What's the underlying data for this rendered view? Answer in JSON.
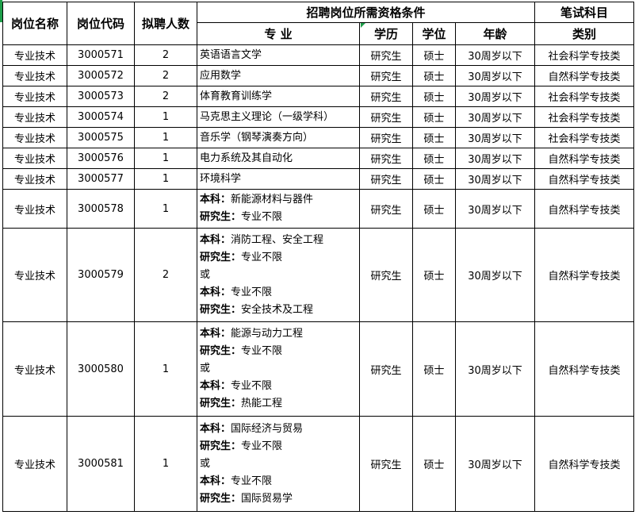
{
  "header": {
    "col_name": "岗位名称",
    "col_code": "岗位代码",
    "col_count": "拟聘人数",
    "group_conditions": "招聘岗位所需资格条件",
    "col_major": "专 业",
    "col_education": "学历",
    "col_degree": "学位",
    "col_age": "年龄",
    "group_exam": "笔试科目",
    "col_category": "类别"
  },
  "rows": [
    {
      "name": "专业技术",
      "code": "3000571",
      "count": "2",
      "major": [
        {
          "label": "",
          "text": "英语语言文学"
        }
      ],
      "education": "研究生",
      "degree": "硕士",
      "age": "30周岁以下",
      "category": "社会科学专技类"
    },
    {
      "name": "专业技术",
      "code": "3000572",
      "count": "2",
      "major": [
        {
          "label": "",
          "text": "应用数学"
        }
      ],
      "education": "研究生",
      "degree": "硕士",
      "age": "30周岁以下",
      "category": "自然科学专技类"
    },
    {
      "name": "专业技术",
      "code": "3000573",
      "count": "2",
      "major": [
        {
          "label": "",
          "text": "体育教育训练学"
        }
      ],
      "education": "研究生",
      "degree": "硕士",
      "age": "30周岁以下",
      "category": "社会科学专技类"
    },
    {
      "name": "专业技术",
      "code": "3000574",
      "count": "1",
      "major": [
        {
          "label": "",
          "text": "马克思主义理论（一级学科）"
        }
      ],
      "education": "研究生",
      "degree": "硕士",
      "age": "30周岁以下",
      "category": "社会科学专技类"
    },
    {
      "name": "专业技术",
      "code": "3000575",
      "count": "1",
      "major": [
        {
          "label": "",
          "text": "音乐学（钢琴演奏方向）"
        }
      ],
      "education": "研究生",
      "degree": "硕士",
      "age": "30周岁以下",
      "category": "社会科学专技类"
    },
    {
      "name": "专业技术",
      "code": "3000576",
      "count": "1",
      "major": [
        {
          "label": "",
          "text": "电力系统及其自动化"
        }
      ],
      "education": "研究生",
      "degree": "硕士",
      "age": "30周岁以下",
      "category": "自然科学专技类"
    },
    {
      "name": "专业技术",
      "code": "3000577",
      "count": "1",
      "major": [
        {
          "label": "",
          "text": "环境科学"
        }
      ],
      "education": "研究生",
      "degree": "硕士",
      "age": "30周岁以下",
      "category": "自然科学专技类"
    },
    {
      "name": "专业技术",
      "code": "3000578",
      "count": "1",
      "major": [
        {
          "label": "本科：",
          "text": "新能源材料与器件"
        },
        {
          "label": "研究生：",
          "text": "专业不限"
        }
      ],
      "education": "研究生",
      "degree": "硕士",
      "age": "30周岁以下",
      "category": "自然科学专技类"
    },
    {
      "name": "专业技术",
      "code": "3000579",
      "count": "2",
      "major": [
        {
          "label": "本科：",
          "text": "消防工程、安全工程"
        },
        {
          "label": "研究生：",
          "text": "专业不限"
        },
        {
          "label": "",
          "text": "或"
        },
        {
          "label": "本科：",
          "text": "专业不限"
        },
        {
          "label": "研究生：",
          "text": "安全技术及工程"
        }
      ],
      "education": "研究生",
      "degree": "硕士",
      "age": "30周岁以下",
      "category": "自然科学专技类"
    },
    {
      "name": "专业技术",
      "code": "3000580",
      "count": "1",
      "major": [
        {
          "label": "本科：",
          "text": "能源与动力工程"
        },
        {
          "label": "研究生：",
          "text": "专业不限"
        },
        {
          "label": "",
          "text": "或"
        },
        {
          "label": "本科：",
          "text": "专业不限"
        },
        {
          "label": "研究生：",
          "text": "热能工程"
        }
      ],
      "education": "研究生",
      "degree": "硕士",
      "age": "30周岁以下",
      "category": "自然科学专技类"
    },
    {
      "name": "专业技术",
      "code": "3000581",
      "count": "1",
      "major": [
        {
          "label": "本科：",
          "text": "国际经济与贸易"
        },
        {
          "label": "研究生：",
          "text": "专业不限"
        },
        {
          "label": "",
          "text": "或"
        },
        {
          "label": "本科：",
          "text": "专业不限"
        },
        {
          "label": "研究生：",
          "text": "国际贸易学"
        }
      ],
      "education": "研究生",
      "degree": "硕士",
      "age": "30周岁以下",
      "category": "自然科学专技类"
    }
  ]
}
